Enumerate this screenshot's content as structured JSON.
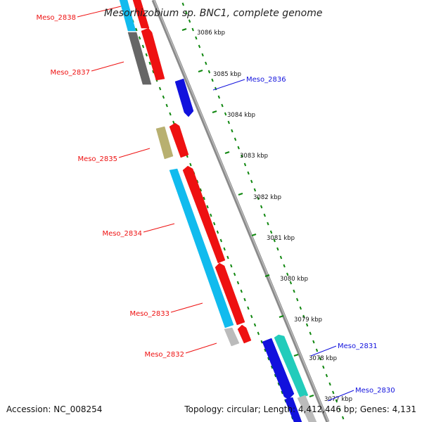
{
  "title": "Mesorhizobium sp. BNC1, complete genome",
  "footer": {
    "accession": "Accession: NC_008254",
    "topology": "Topology: circular; Length: 4,412,446 bp; Genes: 4,131"
  },
  "colors": {
    "forward_gene": "#ee1111",
    "reverse_gene": "#1111dd",
    "cds_cyan": "#11bbee",
    "teal": "#22ccbb",
    "gray_gene": "#666666",
    "light_gray_gene": "#bbbbbb",
    "khaki_gene": "#b8b070",
    "tick_green": "#118811",
    "backbone": "#888888"
  },
  "scale_ticks": [
    "3086 kbp",
    "3085 kbp",
    "3084 kbp",
    "3083 kbp",
    "3082 kbp",
    "3081 kbp",
    "3080 kbp",
    "3079 kbp",
    "3078 kbp",
    "3077 kbp"
  ],
  "gene_labels_left": [
    "Meso_2838",
    "Meso_2837",
    "Meso_2835",
    "Meso_2834",
    "Meso_2833",
    "Meso_2832"
  ],
  "gene_labels_right": [
    "Meso_2836",
    "Meso_2831",
    "Meso_2830"
  ]
}
